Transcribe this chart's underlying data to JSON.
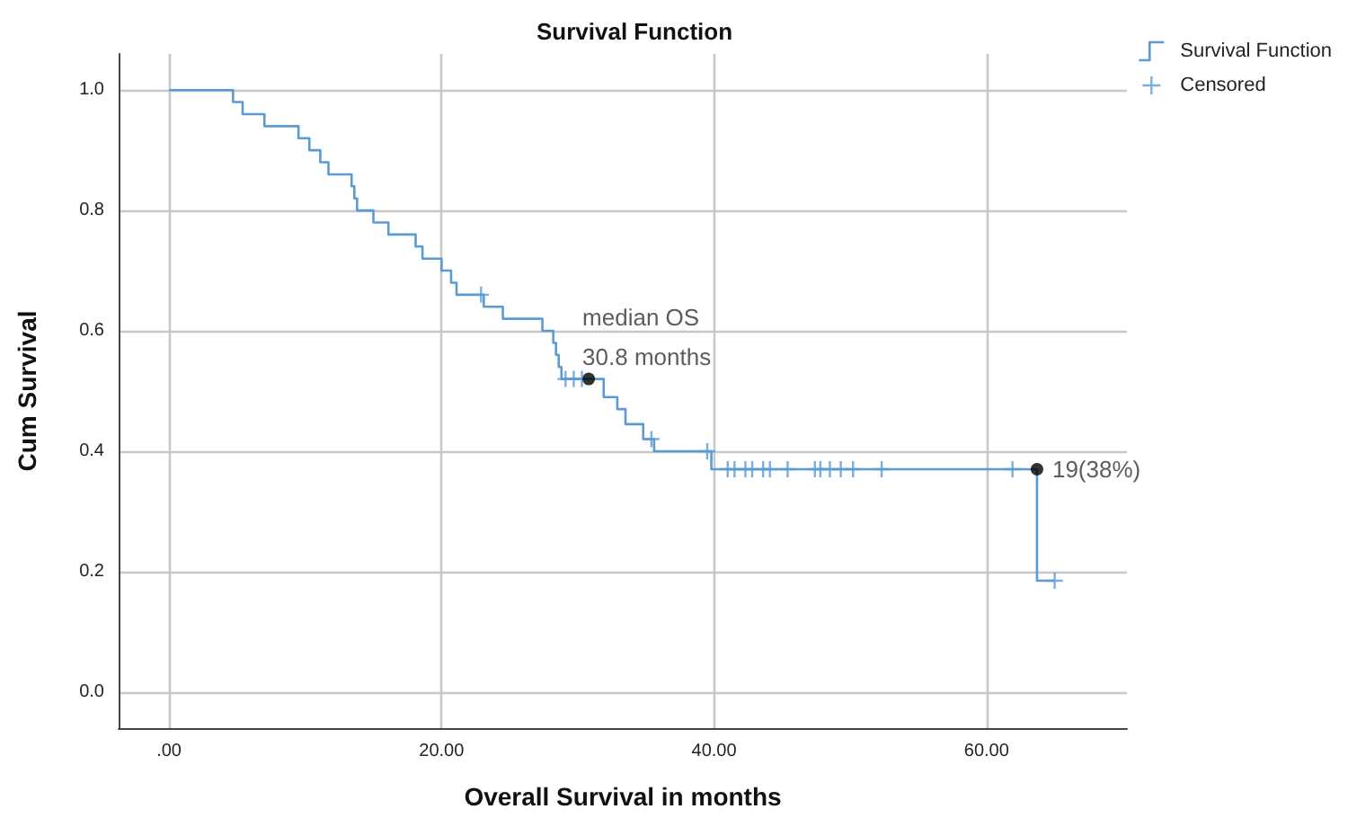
{
  "chart_data": {
    "type": "step",
    "title": "Survival Function",
    "xlabel": "Overall Survival in months",
    "ylabel": "Cum Survival",
    "xlim": [
      -3.7,
      70.3
    ],
    "ylim": [
      -0.06,
      1.06
    ],
    "xticks": [
      {
        "value": 0,
        "label": ".00"
      },
      {
        "value": 20,
        "label": "20.00"
      },
      {
        "value": 40,
        "label": "40.00"
      },
      {
        "value": 60,
        "label": "60.00"
      }
    ],
    "yticks": [
      {
        "value": 0,
        "label": "0.0"
      },
      {
        "value": 0.2,
        "label": "0.2"
      },
      {
        "value": 0.4,
        "label": "0.4"
      },
      {
        "value": 0.6,
        "label": "0.6"
      },
      {
        "value": 0.8,
        "label": "0.8"
      },
      {
        "value": 1,
        "label": "1.0"
      }
    ],
    "grid": true,
    "legend": "top right",
    "series": [
      {
        "name": "Survival Function",
        "color": "#5b9bd5",
        "marker": "none",
        "x": [
          0,
          4.7,
          5.4,
          7.0,
          9.5,
          10.3,
          11.1,
          11.7,
          13.4,
          13.6,
          13.8,
          15.0,
          16.1,
          18.1,
          18.6,
          20.0,
          20.7,
          21.1,
          23.1,
          24.5,
          27.4,
          28.2,
          28.4,
          28.6,
          28.8,
          31.9,
          32.9,
          33.5,
          34.8,
          35.6,
          39.8,
          63.7,
          65.0
        ],
        "values": [
          1.0,
          0.98,
          0.96,
          0.94,
          0.92,
          0.9,
          0.88,
          0.86,
          0.84,
          0.82,
          0.8,
          0.78,
          0.76,
          0.74,
          0.72,
          0.7,
          0.68,
          0.66,
          0.64,
          0.62,
          0.6,
          0.58,
          0.56,
          0.54,
          0.52,
          0.49,
          0.47,
          0.445,
          0.42,
          0.4,
          0.37,
          0.185,
          0.185
        ]
      },
      {
        "name": "Censored",
        "type": "scatter",
        "color": "#5b9bd5",
        "marker": "cross",
        "x": [
          22.9,
          29.1,
          29.7,
          30.3,
          35.4,
          39.5,
          41.0,
          41.5,
          42.3,
          42.8,
          43.6,
          44.1,
          45.4,
          47.4,
          47.8,
          48.5,
          49.3,
          50.2,
          52.3,
          61.9,
          65.0
        ],
        "values": [
          0.66,
          0.52,
          0.52,
          0.52,
          0.42,
          0.4,
          0.37,
          0.37,
          0.37,
          0.37,
          0.37,
          0.37,
          0.37,
          0.37,
          0.37,
          0.37,
          0.37,
          0.37,
          0.37,
          0.37,
          0.185
        ]
      }
    ],
    "annotations": [
      {
        "text": "median OS\n30.8 months",
        "x": 30.8,
        "y": 0.52
      },
      {
        "text": "19(38%)",
        "x": 63.7,
        "y": 0.37
      }
    ]
  }
}
